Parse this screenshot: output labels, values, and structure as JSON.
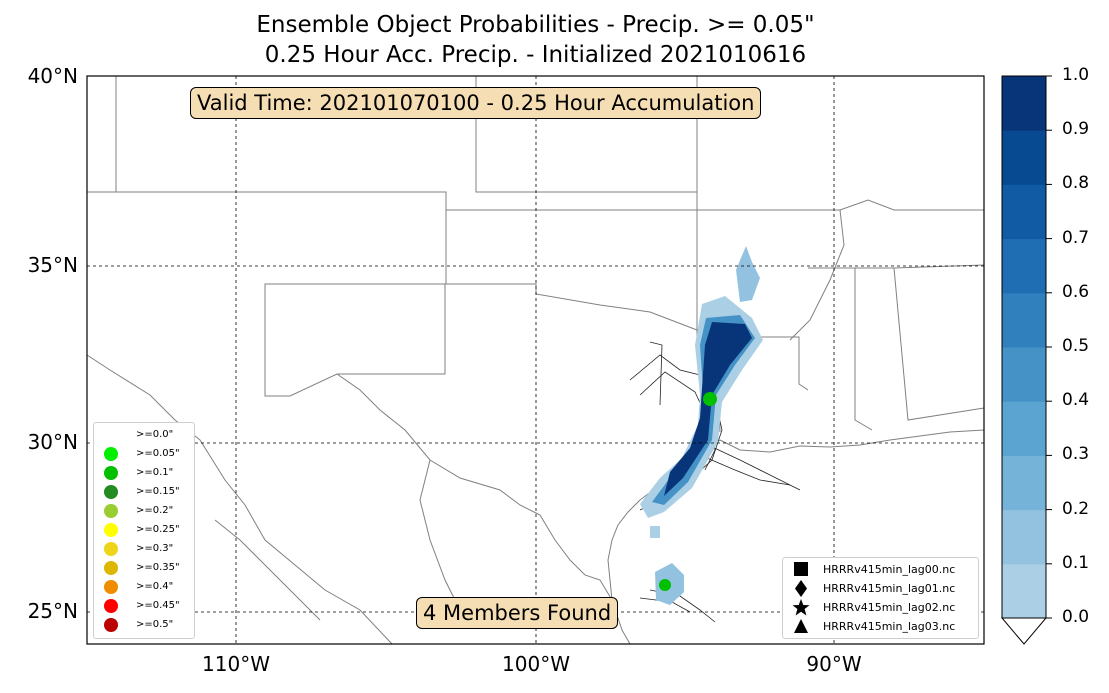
{
  "title": {
    "line1": "Ensemble Object Probabilities - Precip. >= 0.05\"",
    "line2": "0.25 Hour Acc. Precip. - Initialized 2021010616"
  },
  "map": {
    "lat_labels": [
      "40°N",
      "35°N",
      "30°N",
      "25°N"
    ],
    "lon_labels": [
      "110°W",
      "100°W",
      "90°W"
    ],
    "lat_range": [
      24,
      40
    ],
    "lon_range": [
      -115,
      -85
    ],
    "grid": "dashed"
  },
  "valid_time_label": "Valid Time: 202101070100 - 0.25 Hour Accumulation",
  "members_found_label": "4 Members Found",
  "colorbar": {
    "ticks": [
      "0.0",
      "0.1",
      "0.2",
      "0.3",
      "0.4",
      "0.5",
      "0.6",
      "0.7",
      "0.8",
      "0.9",
      "1.0"
    ],
    "colors": [
      "#abcfe5",
      "#92c2df",
      "#75b3d8",
      "#5ba3d0",
      "#4592c6",
      "#3080bd",
      "#1f6eb3",
      "#105ba4",
      "#084a91",
      "#08357a"
    ],
    "extend": "min"
  },
  "threshold_legend": {
    "items": [
      {
        "label": ">=0.0\"",
        "color": "#ffffff"
      },
      {
        "label": ">=0.05\"",
        "color": "#00ee00"
      },
      {
        "label": ">=0.1\"",
        "color": "#00c000"
      },
      {
        "label": ">=0.15\"",
        "color": "#228b22"
      },
      {
        "label": ">=0.2\"",
        "color": "#9acd32"
      },
      {
        "label": ">=0.25\"",
        "color": "#ffff00"
      },
      {
        "label": ">=0.3\"",
        "color": "#eed51a"
      },
      {
        "label": ">=0.35\"",
        "color": "#ddb700"
      },
      {
        "label": ">=0.4\"",
        "color": "#f08c00"
      },
      {
        "label": ">=0.45\"",
        "color": "#ff0000"
      },
      {
        "label": ">=0.5\"",
        "color": "#bb0000"
      }
    ]
  },
  "member_legend": {
    "items": [
      {
        "label": "HRRRv415min_lag00.nc",
        "symbol": "square"
      },
      {
        "label": "HRRRv415min_lag01.nc",
        "symbol": "diamond"
      },
      {
        "label": "HRRRv415min_lag02.nc",
        "symbol": "star"
      },
      {
        "label": "HRRRv415min_lag03.nc",
        "symbol": "triangle"
      }
    ]
  }
}
